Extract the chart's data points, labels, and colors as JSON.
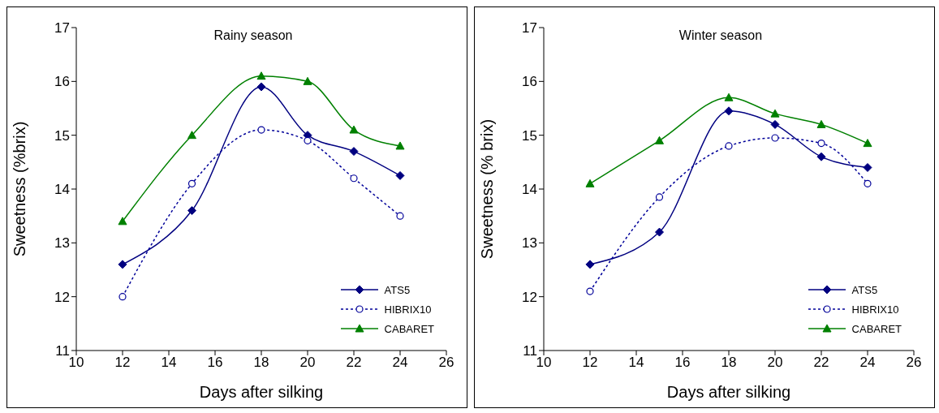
{
  "chart_data": [
    {
      "type": "line",
      "title": "Rainy season",
      "xlabel": "Days after silking",
      "ylabel": "Sweetness (%brix)",
      "x": [
        12,
        15,
        18,
        20,
        22,
        24
      ],
      "xlim": [
        10,
        26
      ],
      "xticks": [
        10,
        12,
        14,
        16,
        18,
        20,
        22,
        24,
        26
      ],
      "ylim": [
        11,
        17
      ],
      "yticks": [
        11,
        12,
        13,
        14,
        15,
        16,
        17
      ],
      "grid": false,
      "legend": "bottom right",
      "series": [
        {
          "name": "ATS5",
          "color": "#000080",
          "marker": "diamond",
          "line_style": "solid",
          "values": [
            12.6,
            13.6,
            15.9,
            15.0,
            14.7,
            14.25
          ]
        },
        {
          "name": "HIBRIX10",
          "color": "#000099",
          "marker": "circle",
          "line_style": "dotted",
          "values": [
            12.0,
            14.1,
            15.1,
            14.9,
            14.2,
            13.5
          ]
        },
        {
          "name": "CABARET",
          "color": "#008000",
          "marker": "triangle",
          "line_style": "solid",
          "values": [
            13.4,
            15.0,
            16.1,
            16.0,
            15.1,
            14.8
          ]
        }
      ]
    },
    {
      "type": "line",
      "title": "Winter season",
      "xlabel": "Days after silking",
      "ylabel": "Sweetness (% brix)",
      "x": [
        12,
        15,
        18,
        20,
        22,
        24
      ],
      "xlim": [
        10,
        26
      ],
      "xticks": [
        10,
        12,
        14,
        16,
        18,
        20,
        22,
        24,
        26
      ],
      "ylim": [
        11,
        17
      ],
      "yticks": [
        11,
        12,
        13,
        14,
        15,
        16,
        17
      ],
      "grid": false,
      "legend": "bottom right",
      "series": [
        {
          "name": "ATS5",
          "color": "#000080",
          "marker": "diamond",
          "line_style": "solid",
          "values": [
            12.6,
            13.2,
            15.45,
            15.2,
            14.6,
            14.4
          ]
        },
        {
          "name": "HIBRIX10",
          "color": "#000099",
          "marker": "circle",
          "line_style": "dotted",
          "values": [
            12.1,
            13.85,
            14.8,
            14.95,
            14.85,
            14.1
          ]
        },
        {
          "name": "CABARET",
          "color": "#008000",
          "marker": "triangle",
          "line_style": "solid",
          "values": [
            14.1,
            14.9,
            15.7,
            15.4,
            15.2,
            14.85
          ]
        }
      ]
    }
  ]
}
